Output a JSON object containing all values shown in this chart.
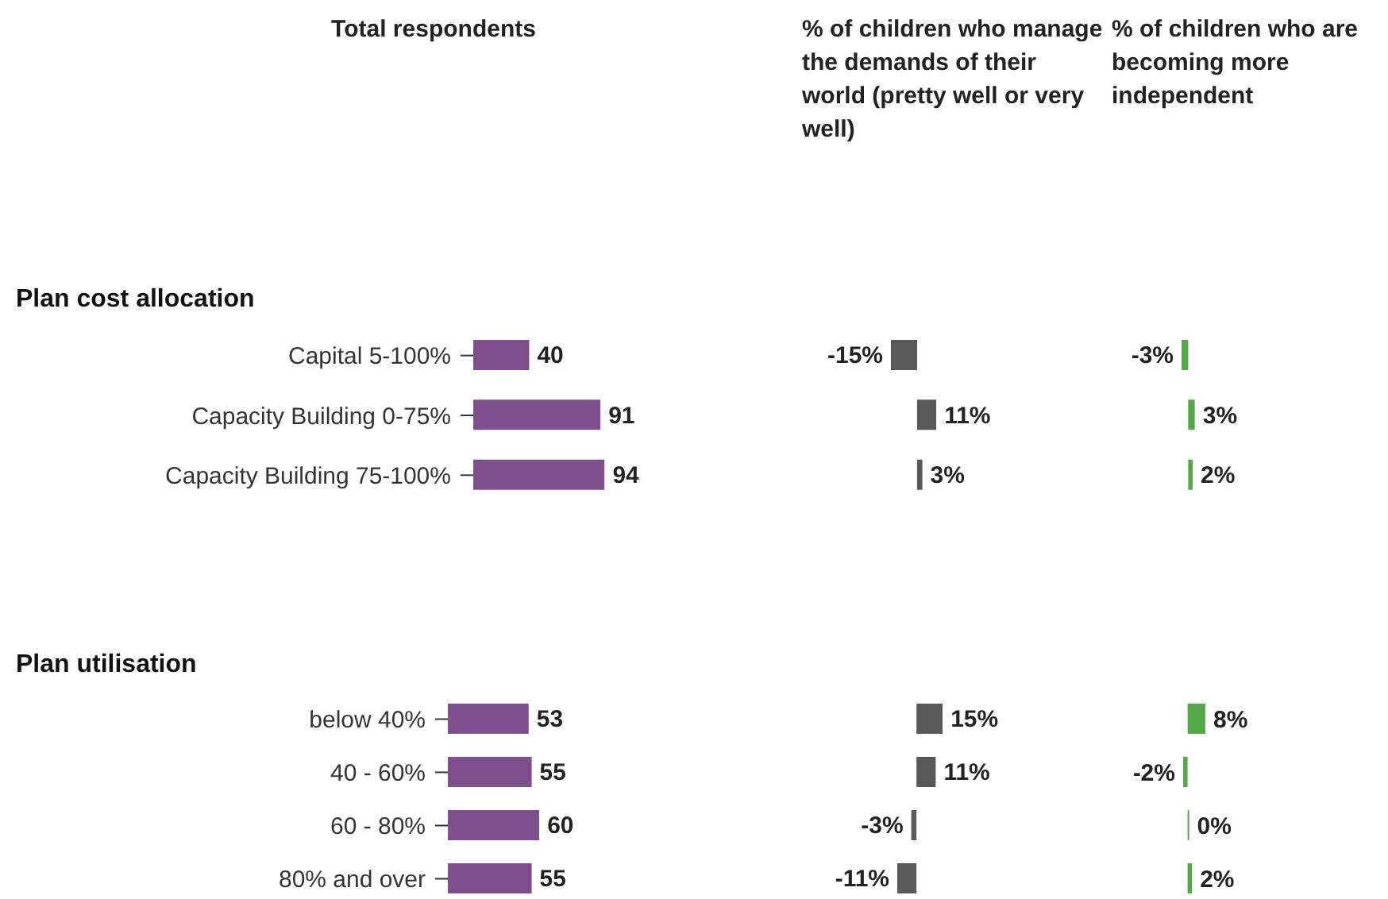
{
  "chart_data": [
    {
      "type": "bar",
      "orientation": "horizontal",
      "title": "Total respondents",
      "annotations": [
        "Plan cost allocation"
      ],
      "categories": [
        "Capital 5-100%",
        "Capacity Building 0-75%",
        "Capacity Building 75-100%"
      ],
      "values": [
        40,
        91,
        94
      ],
      "color": "#7e4f8c",
      "data_labels": true,
      "tick_labels": "y"
    },
    {
      "type": "bar",
      "orientation": "horizontal",
      "title": "% of children who manage the demands of their world (pretty well or very well)",
      "categories": [
        null,
        null,
        null
      ],
      "values": [
        -15,
        11,
        3
      ],
      "value_labels": [
        "-15%",
        "11%",
        "3%"
      ],
      "color": "#595959",
      "tick_labels": false
    },
    {
      "type": "bar",
      "orientation": "horizontal",
      "title": "% of children who are becoming more independent",
      "categories": [
        null,
        null,
        null
      ],
      "values": [
        -3,
        3,
        2
      ],
      "value_labels": [
        "-3%",
        "3%",
        "2%"
      ],
      "color": "#55a74a",
      "tick_labels": false
    },
    {
      "type": "bar",
      "orientation": "horizontal",
      "annotations": [
        "Plan utilisation"
      ],
      "categories": [
        "below 40%",
        "40 - 60%",
        "60 - 80%",
        "80% and over"
      ],
      "values": [
        53,
        55,
        60,
        55
      ],
      "color": "#7e4f8c",
      "data_labels": true,
      "tick_labels": "y"
    },
    {
      "type": "bar",
      "orientation": "horizontal",
      "categories": [
        null,
        null,
        null,
        null
      ],
      "values": [
        15,
        11,
        -3,
        -11
      ],
      "value_labels": [
        "15%",
        "11%",
        "-3%",
        "-11%"
      ],
      "color": "#595959",
      "tick_labels": false
    },
    {
      "type": "bar",
      "orientation": "horizontal",
      "categories": [
        null,
        null,
        null,
        null
      ],
      "values": [
        8,
        -2,
        0,
        2
      ],
      "value_labels": [
        "8%",
        "-2%",
        "0%",
        "2%"
      ],
      "color": "#55a74a",
      "tick_labels": false
    }
  ]
}
